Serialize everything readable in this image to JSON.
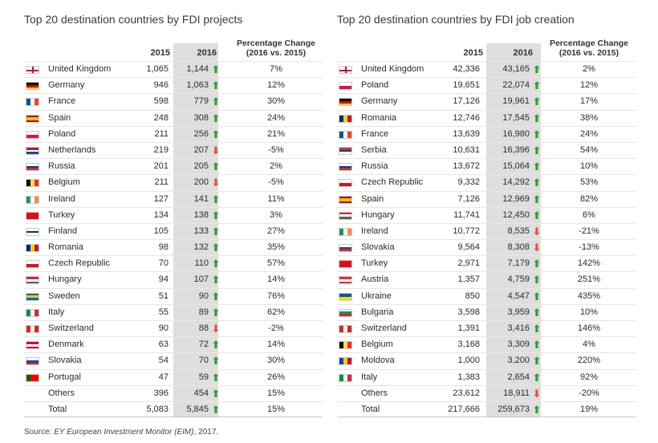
{
  "chart_data": [
    {
      "type": "table",
      "title": "Top 20 destination countries by FDI projects",
      "columns": [
        "",
        "2015",
        "2016",
        "Percentage Change (2016 vs. 2015)"
      ],
      "pct_header_line1": "Percentage Change",
      "pct_header_line2": "(2016 vs. 2015)",
      "rows": [
        {
          "country": "United Kingdom",
          "v2015": "1,065",
          "v2016": "1,144",
          "dir": "up",
          "pct": "7%"
        },
        {
          "country": "Germany",
          "v2015": "946",
          "v2016": "1,063",
          "dir": "up",
          "pct": "12%"
        },
        {
          "country": "France",
          "v2015": "598",
          "v2016": "779",
          "dir": "up",
          "pct": "30%"
        },
        {
          "country": "Spain",
          "v2015": "248",
          "v2016": "308",
          "dir": "up",
          "pct": "24%"
        },
        {
          "country": "Poland",
          "v2015": "211",
          "v2016": "256",
          "dir": "up",
          "pct": "21%"
        },
        {
          "country": "Netherlands",
          "v2015": "219",
          "v2016": "207",
          "dir": "down",
          "pct": "-5%"
        },
        {
          "country": "Russia",
          "v2015": "201",
          "v2016": "205",
          "dir": "up",
          "pct": "2%"
        },
        {
          "country": "Belgium",
          "v2015": "211",
          "v2016": "200",
          "dir": "down",
          "pct": "-5%"
        },
        {
          "country": "Ireland",
          "v2015": "127",
          "v2016": "141",
          "dir": "up",
          "pct": "11%"
        },
        {
          "country": "Turkey",
          "v2015": "134",
          "v2016": "138",
          "dir": "up",
          "pct": "3%"
        },
        {
          "country": "Finland",
          "v2015": "105",
          "v2016": "133",
          "dir": "up",
          "pct": "27%"
        },
        {
          "country": "Romania",
          "v2015": "98",
          "v2016": "132",
          "dir": "up",
          "pct": "35%"
        },
        {
          "country": "Czech Republic",
          "v2015": "70",
          "v2016": "110",
          "dir": "up",
          "pct": "57%"
        },
        {
          "country": "Hungary",
          "v2015": "94",
          "v2016": "107",
          "dir": "up",
          "pct": "14%"
        },
        {
          "country": "Sweden",
          "v2015": "51",
          "v2016": "90",
          "dir": "up",
          "pct": "76%"
        },
        {
          "country": "Italy",
          "v2015": "55",
          "v2016": "89",
          "dir": "up",
          "pct": "62%"
        },
        {
          "country": "Switzerland",
          "v2015": "90",
          "v2016": "88",
          "dir": "down",
          "pct": "-2%"
        },
        {
          "country": "Denmark",
          "v2015": "63",
          "v2016": "72",
          "dir": "up",
          "pct": "14%"
        },
        {
          "country": "Slovakia",
          "v2015": "54",
          "v2016": "70",
          "dir": "up",
          "pct": "30%"
        },
        {
          "country": "Portugal",
          "v2015": "47",
          "v2016": "59",
          "dir": "up",
          "pct": "26%"
        },
        {
          "country": "Others",
          "v2015": "396",
          "v2016": "454",
          "dir": "up",
          "pct": "15%"
        },
        {
          "country": "Total",
          "v2015": "5,083",
          "v2016": "5,845",
          "dir": "up",
          "pct": "15%"
        }
      ]
    },
    {
      "type": "table",
      "title": "Top 20 destination countries by FDI job creation",
      "columns": [
        "",
        "2015",
        "2016",
        "Percentage Change (2016 vs. 2015)"
      ],
      "pct_header_line1": "Percentage Change",
      "pct_header_line2": "(2016 vs. 2015)",
      "rows": [
        {
          "country": "United Kingdom",
          "v2015": "42,336",
          "v2016": "43,165",
          "dir": "up",
          "pct": "2%"
        },
        {
          "country": "Poland",
          "v2015": "19,651",
          "v2016": "22,074",
          "dir": "up",
          "pct": "12%"
        },
        {
          "country": "Germany",
          "v2015": "17,126",
          "v2016": "19,961",
          "dir": "up",
          "pct": "17%"
        },
        {
          "country": "Romania",
          "v2015": "12,746",
          "v2016": "17,545",
          "dir": "up",
          "pct": "38%"
        },
        {
          "country": "France",
          "v2015": "13,639",
          "v2016": "16,980",
          "dir": "up",
          "pct": "24%"
        },
        {
          "country": "Serbia",
          "v2015": "10,631",
          "v2016": "16,396",
          "dir": "up",
          "pct": "54%"
        },
        {
          "country": "Russia",
          "v2015": "13,672",
          "v2016": "15,064",
          "dir": "up",
          "pct": "10%"
        },
        {
          "country": "Czech Republic",
          "v2015": "9,332",
          "v2016": "14,292",
          "dir": "up",
          "pct": "53%"
        },
        {
          "country": "Spain",
          "v2015": "7,126",
          "v2016": "12,969",
          "dir": "up",
          "pct": "82%"
        },
        {
          "country": "Hungary",
          "v2015": "11,741",
          "v2016": "12,450",
          "dir": "up",
          "pct": "6%"
        },
        {
          "country": "Ireland",
          "v2015": "10,772",
          "v2016": "8,535",
          "dir": "down",
          "pct": "-21%"
        },
        {
          "country": "Slovakia",
          "v2015": "9,564",
          "v2016": "8,308",
          "dir": "down",
          "pct": "-13%"
        },
        {
          "country": "Turkey",
          "v2015": "2,971",
          "v2016": "7,179",
          "dir": "up",
          "pct": "142%"
        },
        {
          "country": "Austria",
          "v2015": "1,357",
          "v2016": "4,759",
          "dir": "up",
          "pct": "251%"
        },
        {
          "country": "Ukraine",
          "v2015": "850",
          "v2016": "4,547",
          "dir": "up",
          "pct": "435%"
        },
        {
          "country": "Bulgaria",
          "v2015": "3,598",
          "v2016": "3,959",
          "dir": "up",
          "pct": "10%"
        },
        {
          "country": "Switzerland",
          "v2015": "1,391",
          "v2016": "3,416",
          "dir": "up",
          "pct": "146%"
        },
        {
          "country": "Belgium",
          "v2015": "3,168",
          "v2016": "3,309",
          "dir": "up",
          "pct": "4%"
        },
        {
          "country": "Moldova",
          "v2015": "1,000",
          "v2016": "3,200",
          "dir": "up",
          "pct": "220%"
        },
        {
          "country": "Italy",
          "v2015": "1,383",
          "v2016": "2,654",
          "dir": "up",
          "pct": "92%"
        },
        {
          "country": "Others",
          "v2015": "23,612",
          "v2016": "18,911",
          "dir": "down",
          "pct": "-20%"
        },
        {
          "country": "Total",
          "v2015": "217,666",
          "v2016": "259,673",
          "dir": "up",
          "pct": "19%"
        }
      ]
    }
  ],
  "colors": {
    "up_arrow": "#2e9e3e",
    "down_arrow": "#e5533d",
    "band": "#dedede"
  },
  "icons": {
    "up": "up-arrow-icon",
    "down": "down-arrow-icon",
    "flag": "country-flag-icon"
  },
  "source_prefix": "Source: ",
  "source_italic": "EY European Investment Monitor (EIM)",
  "source_suffix": ", 2017."
}
